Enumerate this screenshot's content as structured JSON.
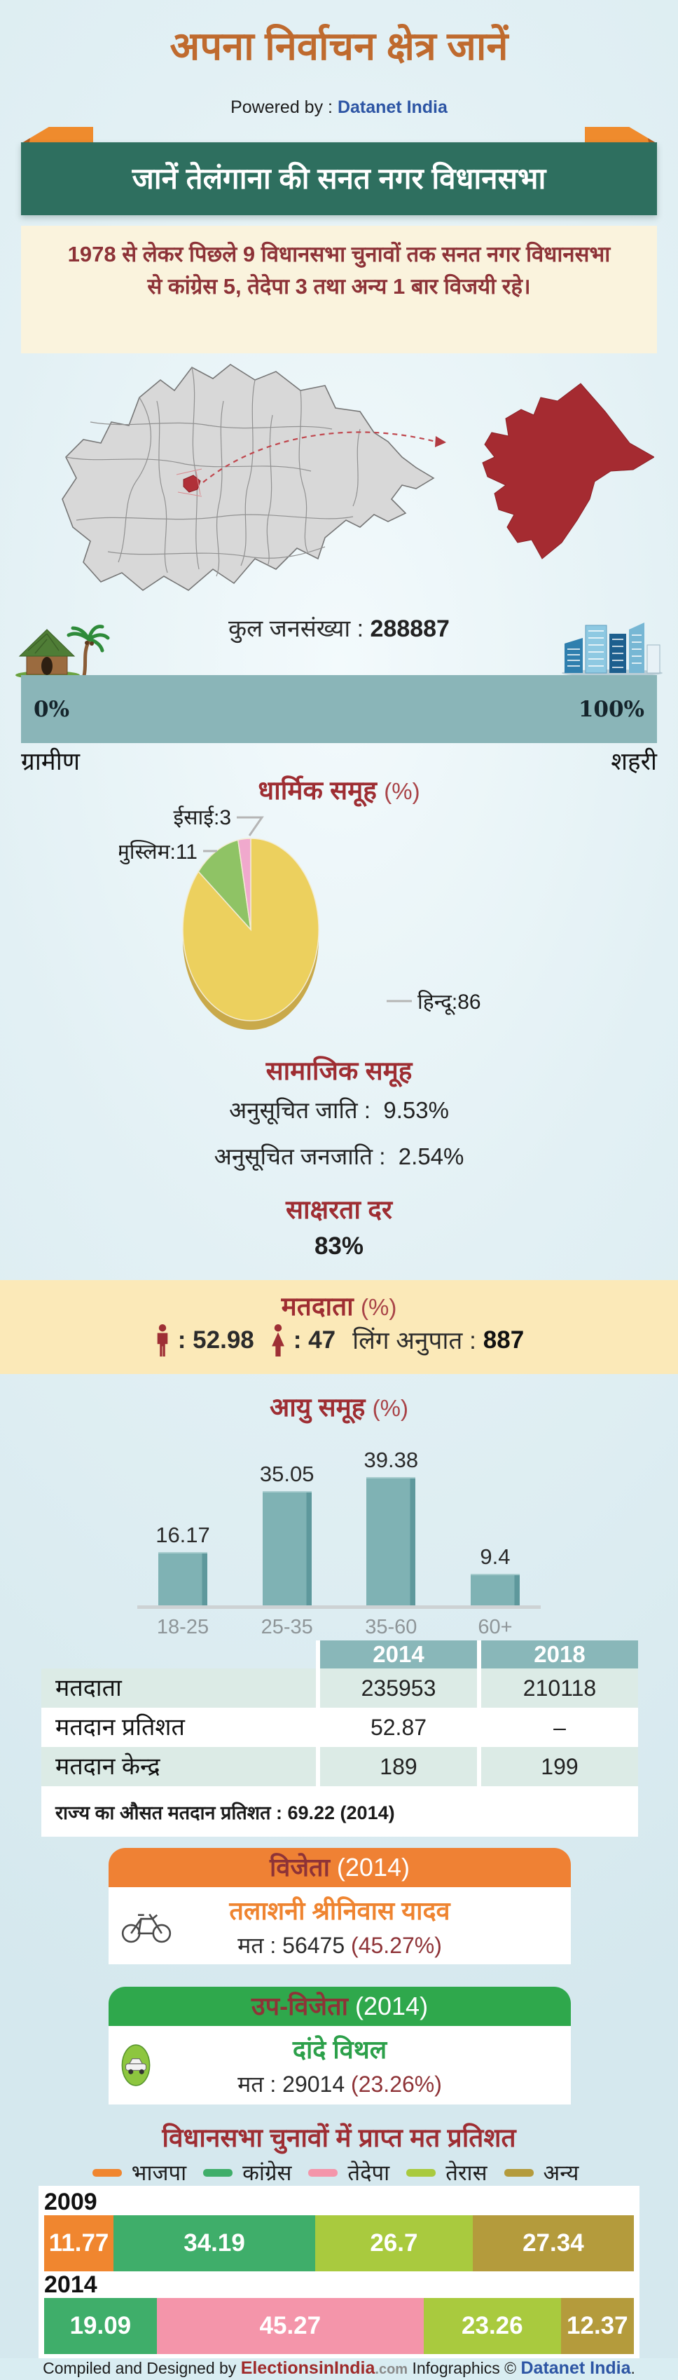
{
  "colors": {
    "accent_orange": "#ef8134",
    "accent_green_banner": "#2e6f5f",
    "dark_red_text": "#9e2d32",
    "teal_bar": "#8ab5b8",
    "table_header_teal": "#89b7b9",
    "yellow_band": "#fbe9b8",
    "cream_box": "#faf3dd"
  },
  "header": {
    "title": "अपना निर्वाचन क्षेत्र जानें",
    "powered_label": "Powered by :",
    "powered_brand": "Datanet India"
  },
  "banner": {
    "text": "जानें तेलंगाना की सनत नगर विधानसभा"
  },
  "intro": {
    "text": "1978 से लेकर पिछले 9 विधानसभा चुनावों तक सनत नगर विधानसभा से कांग्रेस 5, तेदेपा 3 तथा अन्य 1 बार विजयी रहे।"
  },
  "population": {
    "label": "कुल जनसंख्या :",
    "value": "288887"
  },
  "rural_urban": {
    "left_pct": "0%",
    "right_pct": "100%",
    "left_label": "ग्रामीण",
    "right_label": "शहरी"
  },
  "religion": {
    "title": "धार्मिक समूह",
    "unit": "(%)",
    "labels": {
      "christian": "ईसाई:3",
      "muslim": "मुस्लिम:11",
      "hindu": "हिन्दू:86"
    }
  },
  "social": {
    "title": "सामाजिक समूह",
    "rows": [
      {
        "label": "अनुसूचित जाति :",
        "value": "9.53%"
      },
      {
        "label": "अनुसूचित जनजाति :",
        "value": "2.54%"
      }
    ]
  },
  "literacy": {
    "title": "साक्षरता दर",
    "value": "83%"
  },
  "voters": {
    "title": "मतदाता",
    "unit": "(%)",
    "male_value": ": 52.98",
    "female_value": ": 47",
    "ratio_label": "लिंग अनुपात :",
    "ratio_value": "887"
  },
  "age_chart": {
    "title": "आयु समूह",
    "unit": "(%)",
    "categories": [
      "18-25",
      "25-35",
      "35-60",
      "60+"
    ],
    "values": [
      16.17,
      35.05,
      39.38,
      9.4
    ]
  },
  "turnout": {
    "col1": "2014",
    "col2": "2018",
    "rows": [
      {
        "label": "मतदाता",
        "v1": "235953",
        "v2": "210118"
      },
      {
        "label": "मतदान प्रतिशत",
        "v1": "52.87",
        "v2": "–"
      },
      {
        "label": "मतदान केन्द्र",
        "v1": "189",
        "v2": "199"
      }
    ],
    "note": "राज्य का औसत मतदान प्रतिशत : 69.22 (2014)"
  },
  "winner": {
    "head": "विजेता",
    "year": "(2014)",
    "name": "तलाशनी श्रीनिवास यादव",
    "votes_label": "मत : 56475",
    "pct": "(45.27%)"
  },
  "runner_up": {
    "head": "उप-विजेता",
    "year": "(2014)",
    "name": "दांदे विथल",
    "votes_label": "मत : 29014",
    "pct": "(23.26%)"
  },
  "vote_share": {
    "title": "विधानसभा चुनावों में प्राप्त मत प्रतिशत",
    "legend": [
      {
        "label": "भाजपा",
        "color": "#f0862f"
      },
      {
        "label": "कांग्रेस",
        "color": "#3fae6a"
      },
      {
        "label": "तेदेपा",
        "color": "#f495aa"
      },
      {
        "label": "तेरास",
        "color": "#a9ca3e"
      },
      {
        "label": "अन्य",
        "color": "#b49b3c"
      }
    ],
    "bars": [
      {
        "year": "2009",
        "segments": [
          {
            "party": "भाजपा",
            "value": 11.77,
            "color": "#f0862f"
          },
          {
            "party": "कांग्रेस",
            "value": 34.19,
            "color": "#3fae6a"
          },
          {
            "party": "तेरास",
            "value": 26.7,
            "color": "#a9ca3e"
          },
          {
            "party": "अन्य",
            "value": 27.34,
            "color": "#b49b3c"
          }
        ]
      },
      {
        "year": "2014",
        "segments": [
          {
            "party": "कांग्रेस",
            "value": 19.09,
            "color": "#3fae6a"
          },
          {
            "party": "तेदेपा",
            "value": 45.27,
            "color": "#f495aa"
          },
          {
            "party": "तेरास",
            "value": 23.26,
            "color": "#a9ca3e"
          },
          {
            "party": "अन्य",
            "value": 12.37,
            "color": "#b49b3c"
          }
        ]
      }
    ]
  },
  "footer": {
    "part1": "Compiled and Designed by",
    "brand1": "ElectionsinIndia",
    "dotcom": ".com",
    "part2": "Infographics ©",
    "brand2": "Datanet India",
    "dot": "."
  },
  "chart_data": [
    {
      "type": "pie",
      "title": "धार्मिक समूह (%)",
      "labels": [
        "हिन्दू",
        "मुस्लिम",
        "ईसाई"
      ],
      "values": [
        86,
        11,
        3
      ],
      "colors": [
        "#ecd05e",
        "#8fc365",
        "#f0a9cd"
      ]
    },
    {
      "type": "bar",
      "title": "आयु समूह (%)",
      "categories": [
        "18-25",
        "25-35",
        "35-60",
        "60+"
      ],
      "values": [
        16.17,
        35.05,
        39.38,
        9.4
      ],
      "ylim": [
        0,
        45
      ],
      "bar_color": "#7fb2b4"
    },
    {
      "type": "table",
      "title": "मतदान",
      "columns": [
        "",
        "2014",
        "2018"
      ],
      "rows": [
        [
          "मतदाता",
          "235953",
          "210118"
        ],
        [
          "मतदान प्रतिशत",
          "52.87",
          "–"
        ],
        [
          "मतदान केन्द्र",
          "189",
          "199"
        ]
      ],
      "note": "राज्य का औसत मतदान प्रतिशत : 69.22 (2014)"
    },
    {
      "type": "bar",
      "subtype": "stacked-horizontal",
      "title": "विधानसभा चुनावों में प्राप्त मत प्रतिशत",
      "legend": [
        "भाजपा",
        "कांग्रेस",
        "तेदेपा",
        "तेरास",
        "अन्य"
      ],
      "categories": [
        "2009",
        "2014"
      ],
      "series": [
        {
          "name": "2009",
          "values": [
            {
              "party": "भाजपा",
              "value": 11.77
            },
            {
              "party": "कांग्रेस",
              "value": 34.19
            },
            {
              "party": "तेरास",
              "value": 26.7
            },
            {
              "party": "अन्य",
              "value": 27.34
            }
          ]
        },
        {
          "name": "2014",
          "values": [
            {
              "party": "कांग्रेस",
              "value": 19.09
            },
            {
              "party": "तेदेपा",
              "value": 45.27
            },
            {
              "party": "तेरास",
              "value": 23.26
            },
            {
              "party": "अन्य",
              "value": 12.37
            }
          ]
        }
      ]
    }
  ]
}
